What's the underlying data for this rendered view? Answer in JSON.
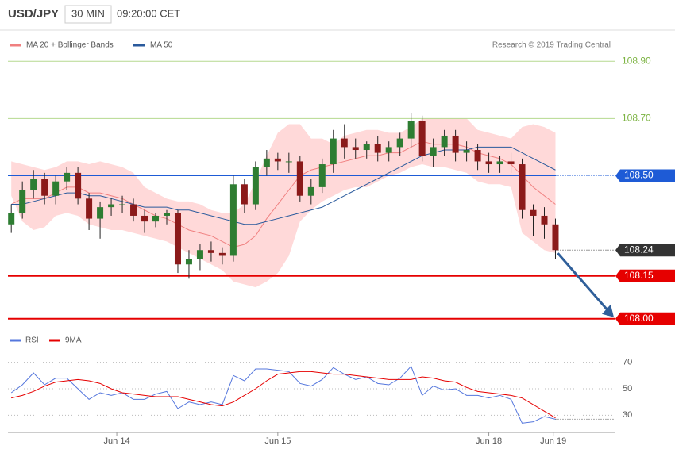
{
  "header": {
    "symbol": "USD/JPY",
    "interval": "30 MIN",
    "time": "09:20:00 CET"
  },
  "chart_data": {
    "type": "candlestick",
    "legend": [
      {
        "name": "MA 20 + Bollinger Bands",
        "color": "#f08080"
      },
      {
        "name": "MA 50",
        "color": "#2a5a9c"
      }
    ],
    "credit": "Research © 2019 Trading Central",
    "ylim": [
      107.98,
      108.92
    ],
    "xlim": [
      -0.3,
      54.4
    ],
    "xticks": [
      {
        "value": 9.5,
        "label": "Jun 14"
      },
      {
        "value": 24,
        "label": "Jun 15"
      },
      {
        "value": 43,
        "label": "Jun 18"
      },
      {
        "value": 48.8,
        "label": "Jun 19"
      }
    ],
    "up_color": "#2e7d32",
    "down_color": "#8b1a1a",
    "band_color": "#ffd0d0",
    "open": [
      108.33,
      108.37,
      108.45,
      108.49,
      108.43,
      108.48,
      108.51,
      108.42,
      108.35,
      108.39,
      108.4,
      108.4,
      108.36,
      108.34,
      108.36,
      108.37,
      108.19,
      108.21,
      108.24,
      108.23,
      108.22,
      108.47,
      108.4,
      108.53,
      108.56,
      108.55,
      108.55,
      108.43,
      108.46,
      108.54,
      108.63,
      108.6,
      108.59,
      108.61,
      108.58,
      108.6,
      108.63,
      108.69,
      108.57,
      108.6,
      108.64,
      108.58,
      108.59,
      108.55,
      108.54,
      108.55,
      108.54,
      108.38,
      108.36,
      108.33
    ],
    "high": [
      108.4,
      108.48,
      108.52,
      108.51,
      108.5,
      108.53,
      108.53,
      108.44,
      108.41,
      108.42,
      108.43,
      108.42,
      108.38,
      108.37,
      108.38,
      108.38,
      108.24,
      108.26,
      108.27,
      108.25,
      108.5,
      108.49,
      108.55,
      108.59,
      108.58,
      108.58,
      108.57,
      108.49,
      108.56,
      108.66,
      108.68,
      108.63,
      108.62,
      108.64,
      108.62,
      108.65,
      108.72,
      108.71,
      108.63,
      108.66,
      108.66,
      108.62,
      108.61,
      108.58,
      108.57,
      108.58,
      108.56,
      108.4,
      108.39,
      108.35
    ],
    "low": [
      108.3,
      108.35,
      108.42,
      108.4,
      108.4,
      108.45,
      108.4,
      108.31,
      108.28,
      108.36,
      108.37,
      108.34,
      108.3,
      108.32,
      108.33,
      108.16,
      108.14,
      108.17,
      108.2,
      108.19,
      108.2,
      108.37,
      108.38,
      108.5,
      108.52,
      108.51,
      108.41,
      108.4,
      108.44,
      108.51,
      108.56,
      108.56,
      108.56,
      108.55,
      108.55,
      108.57,
      108.6,
      108.55,
      108.53,
      108.57,
      108.55,
      108.55,
      108.52,
      108.51,
      108.51,
      108.51,
      108.35,
      108.29,
      108.28,
      108.21
    ],
    "close": [
      108.37,
      108.45,
      108.49,
      108.43,
      108.48,
      108.51,
      108.42,
      108.35,
      108.39,
      108.4,
      108.4,
      108.36,
      108.34,
      108.36,
      108.37,
      108.19,
      108.21,
      108.24,
      108.23,
      108.22,
      108.47,
      108.4,
      108.53,
      108.56,
      108.55,
      108.55,
      108.43,
      108.46,
      108.54,
      108.63,
      108.6,
      108.59,
      108.61,
      108.58,
      108.6,
      108.63,
      108.69,
      108.57,
      108.6,
      108.64,
      108.58,
      108.59,
      108.55,
      108.54,
      108.55,
      108.54,
      108.38,
      108.36,
      108.33,
      108.24
    ],
    "bb_upper": [
      108.55,
      108.54,
      108.53,
      108.52,
      108.53,
      108.55,
      108.55,
      108.54,
      108.55,
      108.54,
      108.53,
      108.51,
      108.46,
      108.44,
      108.42,
      108.41,
      108.41,
      108.4,
      108.38,
      108.37,
      108.37,
      108.4,
      108.48,
      108.57,
      108.65,
      108.68,
      108.68,
      108.63,
      108.63,
      108.61,
      108.64,
      108.65,
      108.66,
      108.66,
      108.65,
      108.65,
      108.67,
      108.7,
      108.7,
      108.7,
      108.7,
      108.7,
      108.66,
      108.65,
      108.64,
      108.63,
      108.67,
      108.68,
      108.67,
      108.65
    ],
    "bb_lower": [
      108.43,
      108.34,
      108.31,
      108.32,
      108.36,
      108.37,
      108.36,
      108.33,
      108.32,
      108.31,
      108.31,
      108.3,
      108.29,
      108.28,
      108.27,
      108.25,
      108.23,
      108.21,
      108.19,
      108.17,
      108.13,
      108.12,
      108.11,
      108.13,
      108.16,
      108.22,
      108.34,
      108.38,
      108.41,
      108.43,
      108.45,
      108.46,
      108.46,
      108.48,
      108.5,
      108.51,
      108.53,
      108.54,
      108.53,
      108.53,
      108.52,
      108.51,
      108.48,
      108.47,
      108.47,
      108.46,
      108.3,
      108.27,
      108.24,
      108.23
    ],
    "ma20": [
      108.4,
      108.42,
      108.42,
      108.42,
      108.44,
      108.46,
      108.46,
      108.44,
      108.44,
      108.43,
      108.42,
      108.4,
      108.38,
      108.36,
      108.35,
      108.33,
      108.31,
      108.3,
      108.29,
      108.27,
      108.25,
      108.26,
      108.29,
      108.35,
      108.4,
      108.45,
      108.5,
      108.52,
      108.53,
      108.54,
      108.55,
      108.56,
      108.57,
      108.57,
      108.58,
      108.58,
      108.6,
      108.62,
      108.61,
      108.61,
      108.61,
      108.6,
      108.58,
      108.57,
      108.56,
      108.54,
      108.5,
      108.46,
      108.43,
      108.4
    ],
    "ma50": [
      108.4,
      108.4,
      108.41,
      108.42,
      108.43,
      108.44,
      108.44,
      108.43,
      108.43,
      108.42,
      108.41,
      108.4,
      108.39,
      108.39,
      108.39,
      108.38,
      108.38,
      108.37,
      108.36,
      108.35,
      108.34,
      108.33,
      108.33,
      108.34,
      108.35,
      108.36,
      108.37,
      108.38,
      108.39,
      108.41,
      108.43,
      108.45,
      108.47,
      108.49,
      108.51,
      108.53,
      108.55,
      108.57,
      108.58,
      108.59,
      108.59,
      108.59,
      108.6,
      108.6,
      108.6,
      108.6,
      108.58,
      108.56,
      108.54,
      108.52
    ],
    "levels": [
      {
        "value": 108.9,
        "label": "108.90",
        "color": "#7cb342",
        "style": "text"
      },
      {
        "value": 108.7,
        "label": "108.70",
        "color": "#7cb342",
        "style": "text"
      },
      {
        "value": 108.5,
        "label": "108.50",
        "color": "#1e5bd6",
        "style": "box"
      },
      {
        "value": 108.24,
        "label": "108.24",
        "color": "#333333",
        "style": "dotted-box"
      },
      {
        "value": 108.15,
        "label": "108.15",
        "color": "#e60000",
        "style": "box"
      },
      {
        "value": 108.0,
        "label": "108.00",
        "color": "#e60000",
        "style": "box"
      }
    ],
    "arrow_color": "#2f5f9a",
    "rsi": {
      "legend": [
        {
          "name": "RSI",
          "color": "#5577dd"
        },
        {
          "name": "9MA",
          "color": "#e60000"
        }
      ],
      "ylim": [
        17,
        80
      ],
      "yticks": [
        30,
        50,
        70
      ],
      "values": [
        47,
        53,
        62,
        53,
        58,
        58,
        50,
        42,
        47,
        45,
        47,
        42,
        42,
        46,
        48,
        35,
        40,
        38,
        40,
        38,
        60,
        56,
        65,
        65,
        64,
        63,
        54,
        52,
        57,
        66,
        61,
        57,
        59,
        54,
        53,
        58,
        67,
        45,
        52,
        49,
        50,
        45,
        45,
        43,
        45,
        42,
        24,
        25,
        29,
        27
      ],
      "ma9": [
        43,
        45,
        48,
        52,
        55,
        56,
        57,
        56,
        54,
        50,
        47,
        46,
        45,
        44,
        44,
        44,
        42,
        40,
        38,
        37,
        40,
        45,
        50,
        56,
        61,
        62,
        63,
        63,
        62,
        61,
        61,
        60,
        59,
        58,
        57,
        57,
        57,
        59,
        58,
        56,
        55,
        51,
        48,
        47,
        46,
        45,
        43,
        38,
        33,
        28
      ]
    }
  }
}
